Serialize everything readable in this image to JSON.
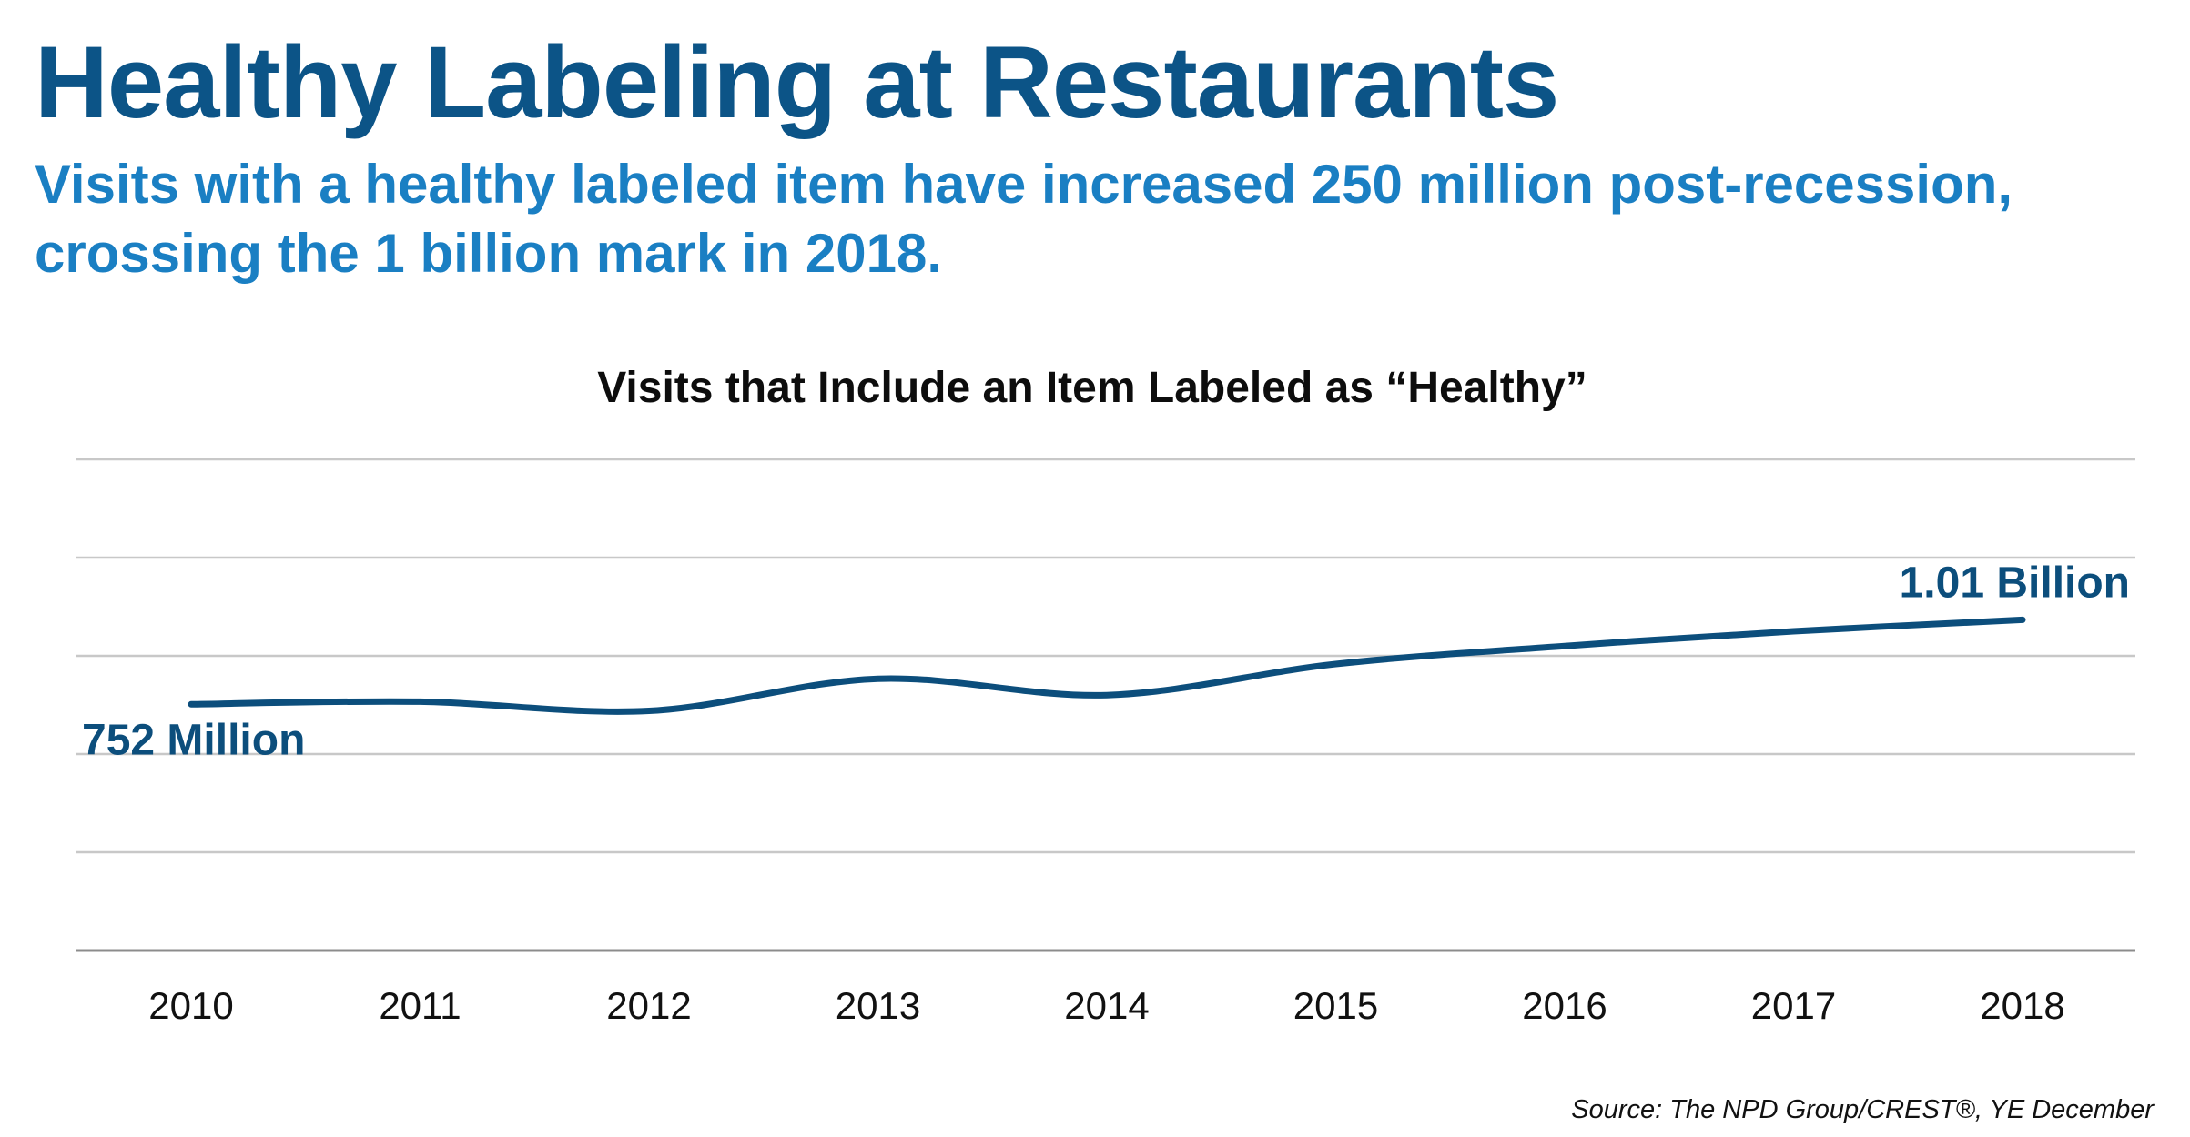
{
  "header": {
    "title": "Healthy Labeling at Restaurants",
    "subtitle": "Visits with a healthy labeled item have increased 250 million post-recession, crossing the 1 billion mark in 2018."
  },
  "chart_data": {
    "type": "line",
    "title": "Visits that Include an Item Labeled as “Healthy”",
    "xlabel": "",
    "ylabel": "",
    "categories": [
      "2010",
      "2011",
      "2012",
      "2013",
      "2014",
      "2015",
      "2016",
      "2017",
      "2018"
    ],
    "series": [
      {
        "values": [
          752,
          760,
          732,
          830,
          780,
          875,
          930,
          975,
          1010
        ]
      }
    ],
    "ylim": [
      0,
      1500
    ],
    "grid": true,
    "annotations": [
      {
        "category": "2010",
        "text": "752 Million",
        "placement": "below"
      },
      {
        "category": "2018",
        "text": "1.01 Billion",
        "placement": "above"
      }
    ],
    "colors": {
      "line": "#0c4e7c",
      "grid": "#c8c8c8",
      "axis": "#8c8c8c"
    }
  },
  "footer": {
    "source": "Source: The NPD Group/CREST®, YE December"
  }
}
